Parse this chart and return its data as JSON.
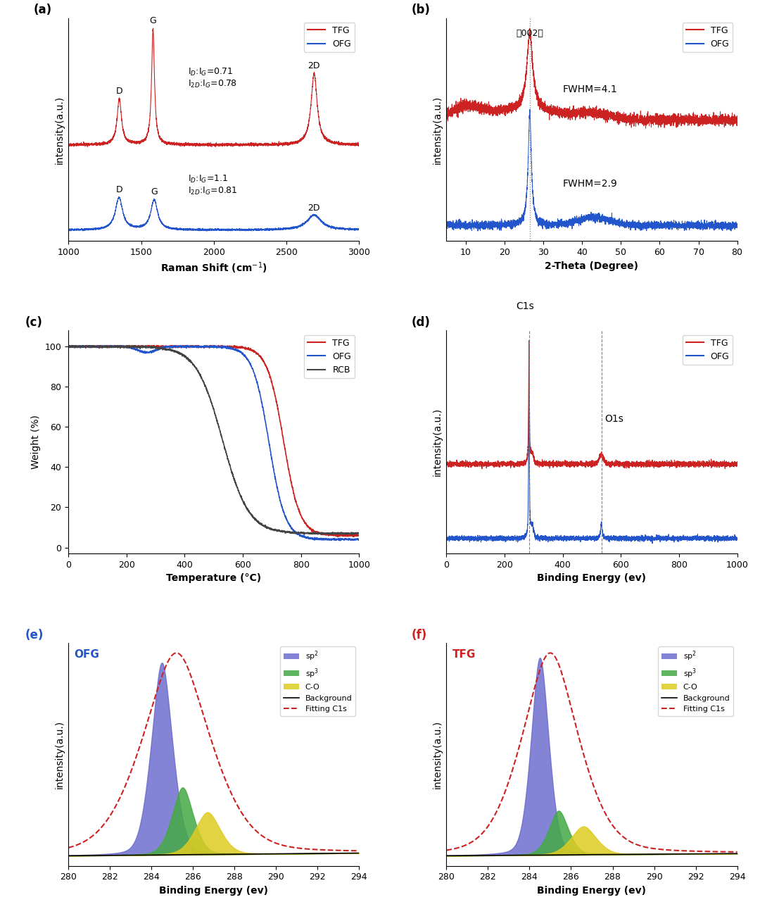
{
  "fig_width": 10.8,
  "fig_height": 12.81,
  "colors": {
    "TFG": "#cc2222",
    "OFG": "#2255cc",
    "RCB": "#444444"
  },
  "raman": {
    "xlabel": "Raman Shift (cm$^{-1}$)",
    "ylabel": "intensity(a.u.)",
    "TFG_annotation": "I$_{D}$:I$_{G}$=0.71\nI$_{2D}$:I$_{G}$=0.78",
    "OFG_annotation": "I$_{D}$:I$_{G}$=1.1\nI$_{2D}$:I$_{G}$=0.81"
  },
  "xrd": {
    "xlabel": "2-Theta (Degree)",
    "ylabel": "intensity(a.u.)",
    "FWHM_TFG": "FWHM=4.1",
    "FWHM_OFG": "FWHM=2.9"
  },
  "tga": {
    "xlabel": "Temperature (°C)",
    "ylabel": "Weight (%)"
  },
  "xps": {
    "xlabel": "Binding Energy (ev)",
    "ylabel": "intensity(a.u.)"
  },
  "c1s": {
    "xlabel": "Binding Energy (ev)",
    "ylabel": "intensity(a.u.)",
    "sp2_color": "#6666cc",
    "sp3_color": "#44aa44",
    "CO_color": "#ddcc22",
    "fitting_color": "#cc2222"
  }
}
